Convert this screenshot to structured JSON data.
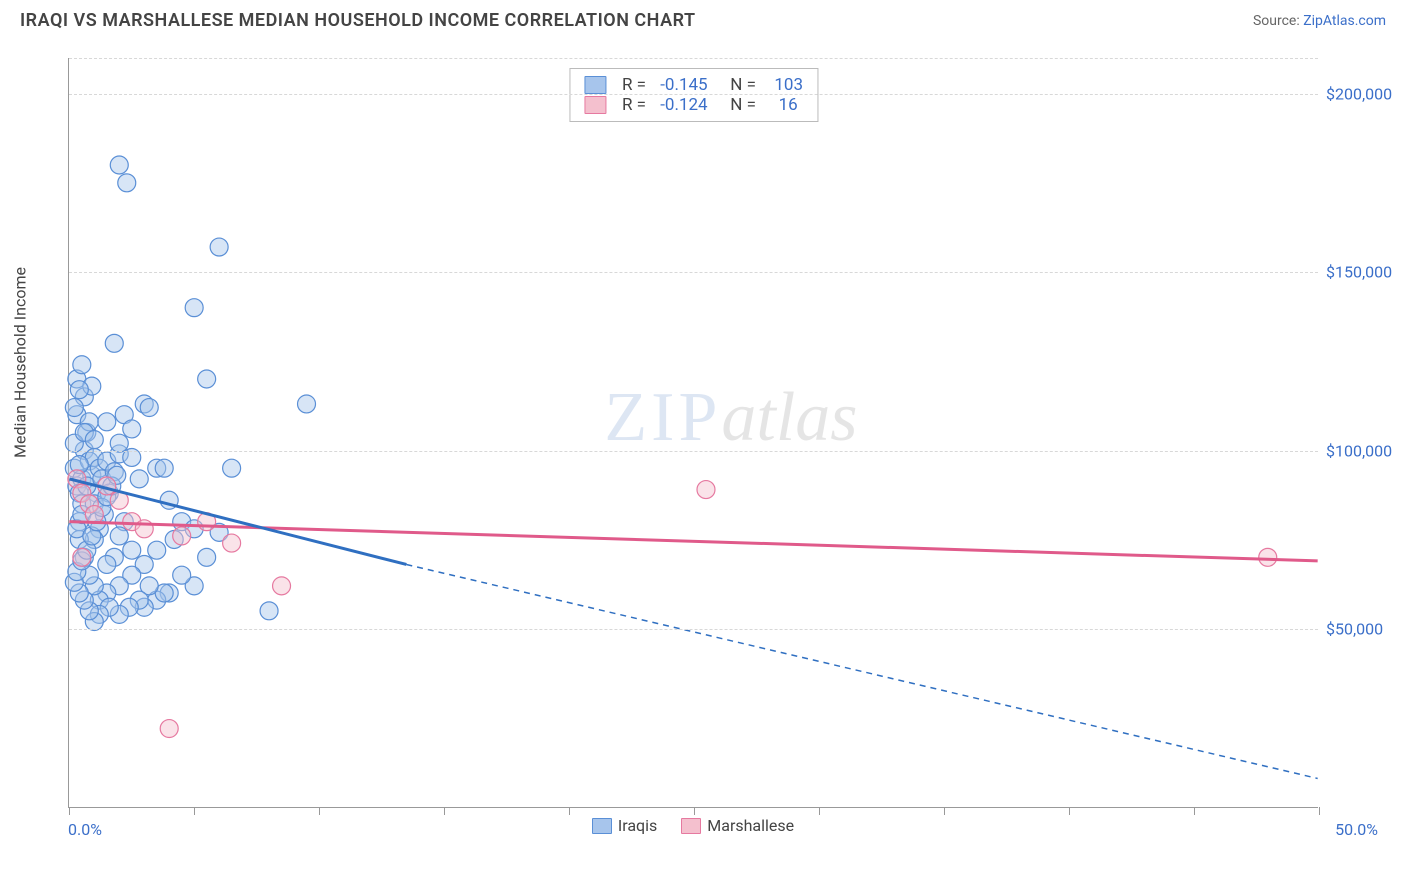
{
  "title": "IRAQI VS MARSHALLESE MEDIAN HOUSEHOLD INCOME CORRELATION CHART",
  "source_label": "Source:",
  "source_name": "ZipAtlas.com",
  "chart": {
    "type": "scatter",
    "ylabel": "Median Household Income",
    "x_start_label": "0.0%",
    "x_end_label": "50.0%",
    "xlim": [
      0,
      50
    ],
    "ylim": [
      0,
      210000
    ],
    "yticks": [
      50000,
      100000,
      150000,
      200000
    ],
    "ytick_labels": [
      "$50,000",
      "$100,000",
      "$150,000",
      "$200,000"
    ],
    "xtick_positions": [
      0,
      5,
      10,
      15,
      20,
      25,
      30,
      35,
      40,
      45,
      50
    ],
    "background_color": "#ffffff",
    "grid_color": "#d8d8d8",
    "axis_color": "#999999",
    "label_color": "#3b6fc9",
    "text_color": "#444444",
    "marker_radius": 9,
    "marker_opacity": 0.45,
    "series": [
      {
        "name": "Iraqis",
        "fill": "#a7c5ec",
        "stroke": "#5a8fd6",
        "line_color": "#2f6fc1",
        "line_width": 3,
        "trend": {
          "x1": 0,
          "y1": 92000,
          "x2": 13.5,
          "y2": 68000
        },
        "trend_ext": {
          "x1": 13.5,
          "y1": 68000,
          "x2": 50,
          "y2": 8000,
          "dash": "6,5"
        },
        "R": "-0.145",
        "N": "103",
        "points": [
          [
            0.2,
            95000
          ],
          [
            0.3,
            90000
          ],
          [
            0.5,
            92000
          ],
          [
            0.4,
            88000
          ],
          [
            0.6,
            100000
          ],
          [
            0.8,
            97000
          ],
          [
            0.3,
            110000
          ],
          [
            0.7,
            105000
          ],
          [
            0.5,
            85000
          ],
          [
            0.4,
            80000
          ],
          [
            0.9,
            93000
          ],
          [
            1.0,
            98000
          ],
          [
            1.2,
            95000
          ],
          [
            1.1,
            88000
          ],
          [
            0.6,
            115000
          ],
          [
            0.8,
            108000
          ],
          [
            0.3,
            120000
          ],
          [
            0.5,
            124000
          ],
          [
            0.9,
            118000
          ],
          [
            0.2,
            102000
          ],
          [
            0.4,
            96000
          ],
          [
            0.7,
            90000
          ],
          [
            1.0,
            85000
          ],
          [
            1.3,
            92000
          ],
          [
            1.5,
            97000
          ],
          [
            1.8,
            94000
          ],
          [
            2.0,
            99000
          ],
          [
            2.2,
            110000
          ],
          [
            1.6,
            88000
          ],
          [
            1.4,
            82000
          ],
          [
            1.2,
            78000
          ],
          [
            1.0,
            75000
          ],
          [
            2.5,
            98000
          ],
          [
            2.8,
            92000
          ],
          [
            3.0,
            113000
          ],
          [
            3.5,
            95000
          ],
          [
            2.2,
            80000
          ],
          [
            2.0,
            76000
          ],
          [
            1.8,
            70000
          ],
          [
            1.5,
            68000
          ],
          [
            3.8,
            95000
          ],
          [
            4.0,
            86000
          ],
          [
            4.5,
            80000
          ],
          [
            4.2,
            75000
          ],
          [
            3.5,
            72000
          ],
          [
            3.0,
            68000
          ],
          [
            2.5,
            65000
          ],
          [
            2.0,
            62000
          ],
          [
            1.5,
            60000
          ],
          [
            1.2,
            58000
          ],
          [
            1.0,
            62000
          ],
          [
            0.8,
            65000
          ],
          [
            0.6,
            70000
          ],
          [
            0.4,
            75000
          ],
          [
            0.3,
            78000
          ],
          [
            0.5,
            82000
          ],
          [
            5.0,
            78000
          ],
          [
            5.5,
            70000
          ],
          [
            5.0,
            62000
          ],
          [
            4.5,
            65000
          ],
          [
            4.0,
            60000
          ],
          [
            3.5,
            58000
          ],
          [
            3.0,
            56000
          ],
          [
            2.5,
            72000
          ],
          [
            6.0,
            77000
          ],
          [
            6.5,
            95000
          ],
          [
            5.5,
            120000
          ],
          [
            5.0,
            140000
          ],
          [
            6.0,
            157000
          ],
          [
            2.0,
            180000
          ],
          [
            2.3,
            175000
          ],
          [
            1.8,
            130000
          ],
          [
            3.2,
            112000
          ],
          [
            0.2,
            112000
          ],
          [
            0.4,
            117000
          ],
          [
            0.6,
            105000
          ],
          [
            1.0,
            103000
          ],
          [
            1.5,
            108000
          ],
          [
            2.0,
            102000
          ],
          [
            2.5,
            106000
          ],
          [
            9.5,
            113000
          ],
          [
            8.0,
            55000
          ],
          [
            3.8,
            60000
          ],
          [
            3.2,
            62000
          ],
          [
            2.8,
            58000
          ],
          [
            2.4,
            56000
          ],
          [
            2.0,
            54000
          ],
          [
            1.6,
            56000
          ],
          [
            1.2,
            54000
          ],
          [
            1.0,
            52000
          ],
          [
            0.8,
            55000
          ],
          [
            0.6,
            58000
          ],
          [
            0.4,
            60000
          ],
          [
            0.2,
            63000
          ],
          [
            0.3,
            66000
          ],
          [
            0.5,
            69000
          ],
          [
            0.7,
            72000
          ],
          [
            0.9,
            76000
          ],
          [
            1.1,
            80000
          ],
          [
            1.3,
            84000
          ],
          [
            1.5,
            87000
          ],
          [
            1.7,
            90000
          ],
          [
            1.9,
            93000
          ]
        ]
      },
      {
        "name": "Marshallese",
        "fill": "#f4c0ce",
        "stroke": "#e679a0",
        "line_color": "#e05a8a",
        "line_width": 3,
        "trend": {
          "x1": 0,
          "y1": 80000,
          "x2": 50,
          "y2": 69000
        },
        "R": "-0.124",
        "N": "16",
        "points": [
          [
            0.3,
            92000
          ],
          [
            0.5,
            88000
          ],
          [
            0.8,
            85000
          ],
          [
            1.0,
            82000
          ],
          [
            1.5,
            90000
          ],
          [
            2.0,
            86000
          ],
          [
            2.5,
            80000
          ],
          [
            3.0,
            78000
          ],
          [
            4.5,
            76000
          ],
          [
            5.5,
            80000
          ],
          [
            6.5,
            74000
          ],
          [
            8.5,
            62000
          ],
          [
            4.0,
            22000
          ],
          [
            0.5,
            70000
          ],
          [
            25.5,
            89000
          ],
          [
            48.0,
            70000
          ]
        ]
      }
    ],
    "bottom_legend": [
      "Iraqis",
      "Marshallese"
    ],
    "watermark": {
      "zip": "ZIP",
      "atlas": "atlas"
    }
  }
}
